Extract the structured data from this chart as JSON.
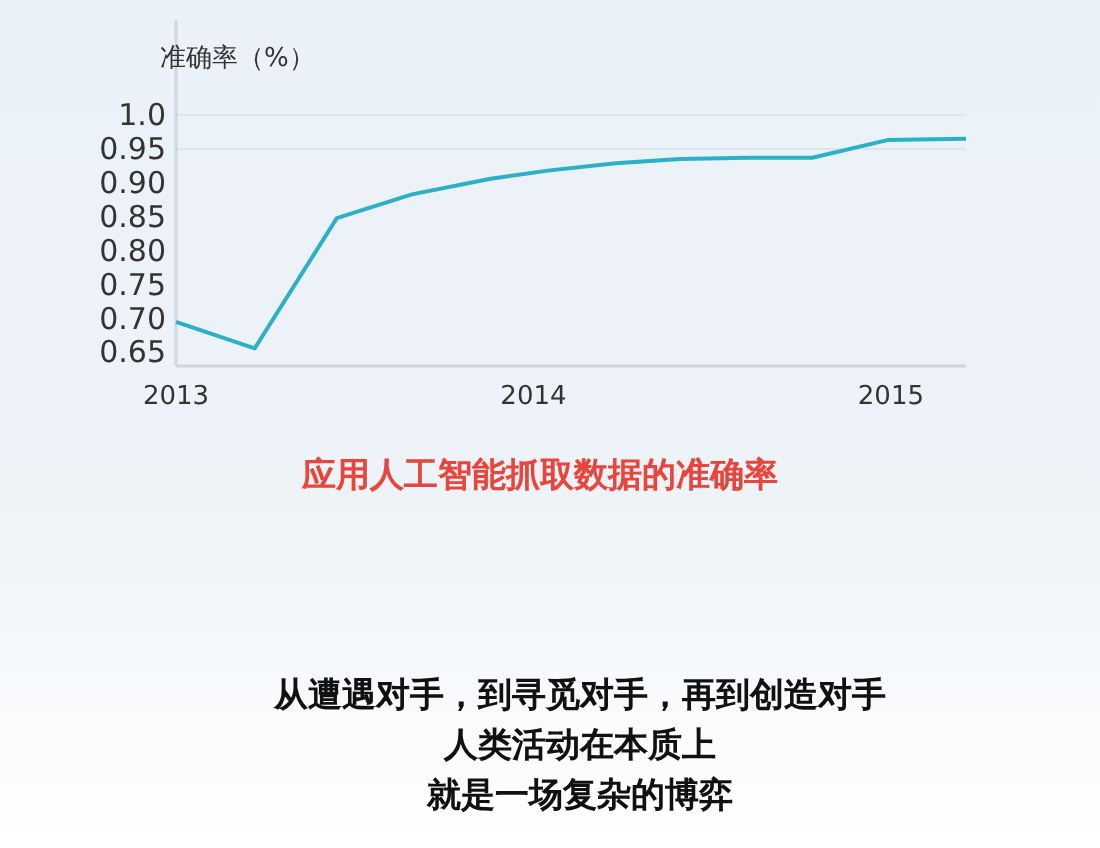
{
  "chart_data": {
    "type": "line",
    "title": "应用人工智能抓取数据的准确率",
    "ylabel": "准确率（%）",
    "x": [
      2013.0,
      2013.22,
      2013.45,
      2013.66,
      2013.88,
      2014.04,
      2014.23,
      2014.41,
      2014.6,
      2014.78,
      2014.99,
      2015.21
    ],
    "series": [
      {
        "color": "#2bb0c8",
        "values": [
          0.695,
          0.656,
          0.848,
          0.883,
          0.906,
          0.918,
          0.929,
          0.935,
          0.937,
          0.937,
          0.963,
          0.965
        ]
      }
    ],
    "xlim": [
      2013,
      2015.21
    ],
    "xticks": [
      2013,
      2014,
      2015
    ],
    "ylim": [
      0.63,
      1.14
    ],
    "yticks": [
      {
        "value": 0.65,
        "label": "0.65"
      },
      {
        "value": 0.7,
        "label": "0.70"
      },
      {
        "value": 0.75,
        "label": "0.75"
      },
      {
        "value": 0.8,
        "label": "0.80"
      },
      {
        "value": 0.85,
        "label": "0.85"
      },
      {
        "value": 0.9,
        "label": "0.90"
      },
      {
        "value": 0.95,
        "label": "0.95"
      },
      {
        "value": 1.0,
        "label": "1.0"
      }
    ],
    "ref_lines": [
      {
        "axis": "y",
        "value": 1.0,
        "color": "#dde6ef"
      },
      {
        "axis": "y",
        "value": 0.95,
        "color": "#dde6ef"
      }
    ],
    "line_style": "solid",
    "marker": "none",
    "annotations": [
      "从遭遇对手，到寻觅对手，再到创造对手",
      "人类活动在本质上",
      "就是一场复杂的博弈"
    ]
  }
}
